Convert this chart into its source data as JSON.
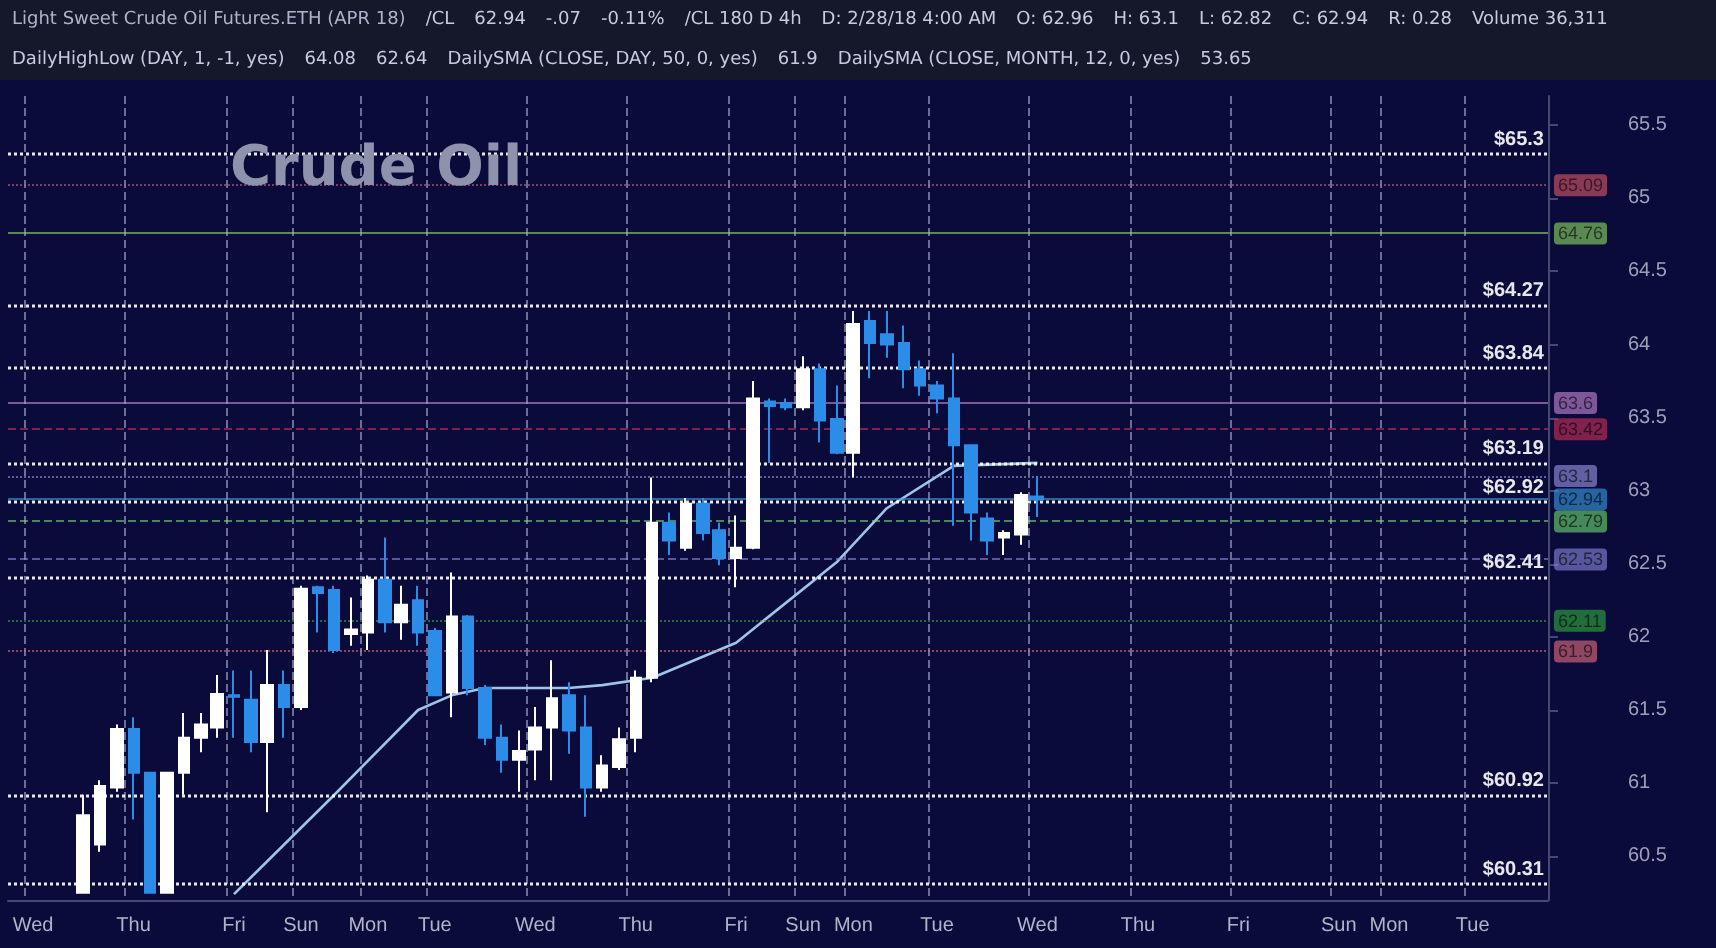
{
  "chart_data": {
    "type": "candlestick",
    "title": "Crude Oil",
    "subtitle": "Light Sweet Crude Oil Futures.ETH (APR 18)",
    "annotations": [
      "/CL",
      "62.94",
      "-.07",
      "-0.11%",
      "/CL 180 D 4h",
      "D: 2/28/18 4:00 AM",
      "O: 62.96",
      "H: 63.1",
      "L: 62.82",
      "C: 62.94",
      "R: 0.28",
      "Volume 36,311",
      "DailyHighLow (DAY, 1, -1, yes)",
      "64.08",
      "62.64",
      "DailySMA (CLOSE, DAY, 50, 0, yes)",
      "61.9",
      "DailySMA (CLOSE, MONTH, 12, 0, yes)",
      "53.65"
    ],
    "categories": [
      null,
      "Wed",
      null,
      null,
      null,
      null,
      null,
      "Thu",
      null,
      null,
      null,
      null,
      null,
      "Fri",
      null,
      null,
      null,
      "Sun",
      null,
      null,
      null,
      "Mon",
      null,
      null,
      null,
      "Tue",
      null,
      null,
      null,
      null,
      null,
      "Wed",
      null,
      null,
      null,
      null,
      null,
      "Thu",
      null,
      null,
      null,
      null,
      null,
      "Fri",
      null,
      null,
      null,
      "Sun",
      null,
      null,
      "Mon",
      null,
      null,
      null,
      null,
      "Tue",
      null,
      null,
      null,
      null,
      null,
      "Wed",
      null,
      null,
      null,
      null,
      null,
      "Thu",
      null,
      null,
      null,
      null,
      null,
      "Fri",
      null,
      null,
      null,
      null,
      null,
      "Sun",
      null,
      null,
      "Mon",
      null,
      null,
      null,
      null,
      "Tue",
      null,
      null,
      null,
      null
    ],
    "ohlc": [
      null,
      null,
      null,
      null,
      [
        60.25,
        60.92,
        60.25,
        60.78
      ],
      [
        60.58,
        61.02,
        60.53,
        60.98
      ],
      [
        60.97,
        61.4,
        60.94,
        61.37
      ],
      [
        61.37,
        61.45,
        60.75,
        61.07
      ],
      [
        61.07,
        61.07,
        60.25,
        60.25
      ],
      [
        60.25,
        61.07,
        60.25,
        61.07
      ],
      [
        61.07,
        61.48,
        60.92,
        61.31
      ],
      [
        61.31,
        61.48,
        61.21,
        61.4
      ],
      [
        61.38,
        61.74,
        61.31,
        61.61
      ],
      [
        61.6,
        61.77,
        61.31,
        61.59
      ],
      [
        61.57,
        61.77,
        61.21,
        61.28
      ],
      [
        61.28,
        61.91,
        60.8,
        61.67
      ],
      [
        61.67,
        61.77,
        61.31,
        61.52
      ],
      [
        61.52,
        62.35,
        61.5,
        62.33
      ],
      [
        62.34,
        62.35,
        62.03,
        62.3
      ],
      [
        62.32,
        62.35,
        61.89,
        61.91
      ],
      [
        62.02,
        62.27,
        61.94,
        62.05
      ],
      [
        62.03,
        62.42,
        61.91,
        62.39
      ],
      [
        62.39,
        62.68,
        62.03,
        62.1
      ],
      [
        62.1,
        62.35,
        61.98,
        62.22
      ],
      [
        62.25,
        62.35,
        61.94,
        62.03
      ],
      [
        62.04,
        62.06,
        61.6,
        61.6
      ],
      [
        61.62,
        62.44,
        61.45,
        62.14
      ],
      [
        62.14,
        62.15,
        61.6,
        61.65
      ],
      [
        61.65,
        61.67,
        61.26,
        61.31
      ],
      [
        61.31,
        61.4,
        61.07,
        61.16
      ],
      [
        61.16,
        61.36,
        60.94,
        61.22
      ],
      [
        61.23,
        61.52,
        61.02,
        61.38
      ],
      [
        61.38,
        61.84,
        61.02,
        61.58
      ],
      [
        61.6,
        61.69,
        61.2,
        61.36
      ],
      [
        61.38,
        61.6,
        60.77,
        60.97
      ],
      [
        60.97,
        61.19,
        60.94,
        61.12
      ],
      [
        61.11,
        61.38,
        61.09,
        61.3
      ],
      [
        61.31,
        61.77,
        61.21,
        61.72
      ],
      [
        61.72,
        63.09,
        61.69,
        62.78
      ],
      [
        62.78,
        62.85,
        62.56,
        62.66
      ],
      [
        62.61,
        62.95,
        62.59,
        62.91
      ],
      [
        62.91,
        62.95,
        62.66,
        62.71
      ],
      [
        62.73,
        62.78,
        62.49,
        62.54
      ],
      [
        62.54,
        62.83,
        62.34,
        62.61
      ],
      [
        62.61,
        63.75,
        62.6,
        63.63
      ],
      [
        63.61,
        63.63,
        63.19,
        63.58
      ],
      [
        63.6,
        63.63,
        63.55,
        63.57
      ],
      [
        63.57,
        63.92,
        63.55,
        63.83
      ],
      [
        63.83,
        63.87,
        63.33,
        63.48
      ],
      [
        63.49,
        63.72,
        63.25,
        63.26
      ],
      [
        63.26,
        64.23,
        63.09,
        64.14
      ],
      [
        64.16,
        64.23,
        63.77,
        64.01
      ],
      [
        64.07,
        64.23,
        63.91,
        64.0
      ],
      [
        64.01,
        64.13,
        63.7,
        63.83
      ],
      [
        63.83,
        63.89,
        63.65,
        63.72
      ],
      [
        63.72,
        63.75,
        63.53,
        63.63
      ],
      [
        63.63,
        63.94,
        62.76,
        63.31
      ],
      [
        63.31,
        63.31,
        62.66,
        62.85
      ],
      [
        62.81,
        62.85,
        62.56,
        62.66
      ],
      [
        62.68,
        62.73,
        62.56,
        62.71
      ],
      [
        62.7,
        62.99,
        62.63,
        62.97
      ],
      [
        62.96,
        63.1,
        62.82,
        62.94
      ],
      null,
      null,
      null,
      null,
      null,
      null,
      null,
      null,
      null,
      null,
      null,
      null,
      null,
      null,
      null,
      null,
      null,
      null,
      null,
      null,
      null,
      null,
      null,
      null,
      null,
      null,
      null,
      null,
      null,
      null
    ],
    "series": [
      {
        "type": "line",
        "color": "#9ec4e8",
        "values": [
          null,
          null,
          null,
          null,
          null,
          null,
          null,
          null,
          null,
          null,
          null,
          null,
          null,
          60.24,
          null,
          null,
          null,
          null,
          null,
          60.92,
          null,
          null,
          null,
          null,
          61.5,
          null,
          61.6,
          null,
          61.65,
          null,
          null,
          null,
          null,
          61.65,
          null,
          61.67,
          null,
          null,
          61.72,
          null,
          null,
          null,
          null,
          61.96,
          null,
          null,
          null,
          null,
          null,
          62.51,
          null,
          null,
          62.88,
          null,
          null,
          null,
          63.17,
          null,
          null,
          null,
          null,
          63.19,
          null,
          null,
          null,
          null,
          null,
          null,
          null,
          null,
          null,
          null,
          null,
          null,
          null,
          null,
          null,
          null,
          null,
          null,
          null,
          null,
          null,
          null,
          null,
          null,
          null,
          null,
          null,
          null,
          null,
          null
        ]
      }
    ],
    "ylim": [
      60.2,
      65.7
    ],
    "yticks": [
      60.5,
      61,
      61.5,
      62,
      62.5,
      63,
      63.5,
      64,
      64.5,
      65,
      65.5
    ],
    "grid": "x",
    "ref_lines": [
      {
        "axis": "y",
        "value": 65.3,
        "label": "$65.3",
        "color": "#ffffff",
        "line_style": "dotted"
      },
      {
        "axis": "y",
        "value": 64.27,
        "label": "$64.27",
        "color": "#ffffff",
        "line_style": "dotted"
      },
      {
        "axis": "y",
        "value": 63.84,
        "label": "$63.84",
        "color": "#ffffff",
        "line_style": "dotted"
      },
      {
        "axis": "y",
        "value": 63.19,
        "label": "$63.19",
        "color": "#ffffff",
        "line_style": "dotted"
      },
      {
        "axis": "y",
        "value": 62.92,
        "label": "$62.92",
        "color": "#ffffff",
        "line_style": "dotted"
      },
      {
        "axis": "y",
        "value": 62.41,
        "label": "$62.41",
        "color": "#ffffff",
        "line_style": "dotted"
      },
      {
        "axis": "y",
        "value": 60.92,
        "label": "$60.92",
        "color": "#ffffff",
        "line_style": "dotted"
      },
      {
        "axis": "y",
        "value": 60.31,
        "label": "$60.31",
        "color": "#ffffff",
        "line_style": "dotted"
      },
      {
        "axis": "y",
        "value": 65.09,
        "label": "65.09",
        "color": "#e05a6a",
        "line_style": "dotted"
      },
      {
        "axis": "y",
        "value": 64.76,
        "label": "64.76",
        "color": "#8fe060",
        "line_style": "solid"
      },
      {
        "axis": "y",
        "value": 63.6,
        "label": "63.6",
        "color": "#c88ad8",
        "line_style": "solid"
      },
      {
        "axis": "y",
        "value": 63.42,
        "label": "63.42",
        "color": "#d0305a",
        "line_style": "dashed"
      },
      {
        "axis": "y",
        "value": 63.1,
        "label": "63.1",
        "color": "#9a9ae8",
        "line_style": "dotted"
      },
      {
        "axis": "y",
        "value": 62.94,
        "label": "62.94",
        "color": "#3aa0e8",
        "line_style": "solid"
      },
      {
        "axis": "y",
        "value": 62.79,
        "label": "62.79",
        "color": "#70e070",
        "line_style": "dashed"
      },
      {
        "axis": "y",
        "value": 62.53,
        "label": "62.53",
        "color": "#8a8ae0",
        "line_style": "dashed"
      },
      {
        "axis": "y",
        "value": 62.11,
        "label": "62.11",
        "color": "#30b040",
        "line_style": "dotted"
      },
      {
        "axis": "y",
        "value": 61.9,
        "label": "61.9",
        "color": "#e87080",
        "line_style": "dotted"
      }
    ]
  }
}
